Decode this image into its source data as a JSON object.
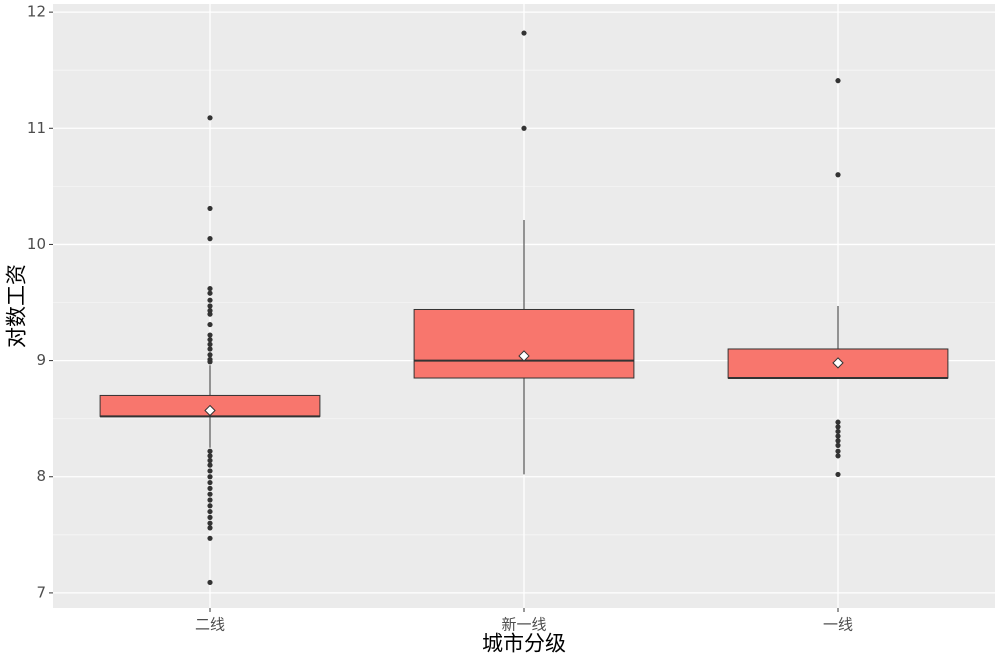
{
  "chart_data": {
    "type": "boxplot",
    "xlabel": "城市分级",
    "ylabel": "对数工资",
    "categories": [
      "二线",
      "新一线",
      "一线"
    ],
    "color": "#f8766d",
    "ylim": [
      6.87,
      12.07
    ],
    "yticks": [
      7,
      8,
      9,
      10,
      11,
      12
    ],
    "grid": true,
    "boxes": [
      {
        "min": 8.25,
        "q1": 8.52,
        "median": 8.52,
        "q3": 8.7,
        "max": 8.96,
        "mean": 8.57,
        "outliers": [
          11.09,
          10.31,
          10.05,
          9.62,
          9.58,
          9.52,
          9.47,
          9.43,
          9.4,
          9.31,
          9.22,
          9.18,
          9.14,
          9.1,
          9.05,
          9.01,
          8.99,
          8.22,
          8.18,
          8.14,
          8.1,
          8.05,
          8.0,
          7.95,
          7.9,
          7.85,
          7.8,
          7.75,
          7.7,
          7.65,
          7.6,
          7.56,
          7.47,
          7.09
        ]
      },
      {
        "min": 8.02,
        "q1": 8.85,
        "median": 9.0,
        "q3": 9.44,
        "max": 10.21,
        "mean": 9.04,
        "outliers": [
          11.82,
          11.0
        ]
      },
      {
        "min": 8.85,
        "q1": 8.85,
        "median": 8.85,
        "q3": 9.1,
        "max": 9.47,
        "mean": 8.98,
        "outliers": [
          11.41,
          10.6,
          8.47,
          8.43,
          8.39,
          8.35,
          8.31,
          8.27,
          8.22,
          8.18,
          8.02
        ]
      }
    ]
  }
}
